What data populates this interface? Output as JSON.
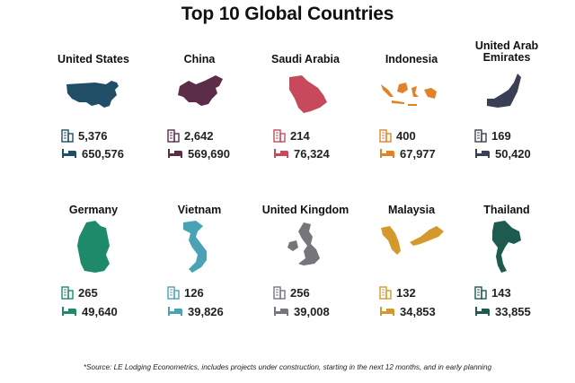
{
  "title": "Top 10 Global Countries",
  "countries": [
    {
      "name": "United States",
      "hotels": "5,376",
      "rooms": "650,576",
      "color": "#1f4e66",
      "icon": "usa-map"
    },
    {
      "name": "China",
      "hotels": "2,642",
      "rooms": "569,690",
      "color": "#5b2d48",
      "icon": "china-map"
    },
    {
      "name": "Saudi Arabia",
      "hotels": "214",
      "rooms": "76,324",
      "color": "#c8495c",
      "icon": "saudi-arabia-map"
    },
    {
      "name": "Indonesia",
      "hotels": "400",
      "rooms": "67,977",
      "color": "#e0822a",
      "icon": "indonesia-map"
    },
    {
      "name": "United Arab Emirates",
      "hotels": "169",
      "rooms": "50,420",
      "color": "#3a3f55",
      "icon": "uae-map"
    },
    {
      "name": "Germany",
      "hotels": "265",
      "rooms": "49,640",
      "color": "#1f8a6a",
      "icon": "germany-map"
    },
    {
      "name": "Vietnam",
      "hotels": "126",
      "rooms": "39,826",
      "color": "#4aa3b5",
      "icon": "vietnam-map"
    },
    {
      "name": "United Kingdom",
      "hotels": "256",
      "rooms": "39,008",
      "color": "#77757c",
      "icon": "uk-map"
    },
    {
      "name": "Malaysia",
      "hotels": "132",
      "rooms": "34,853",
      "color": "#d39a2b",
      "icon": "malaysia-map"
    },
    {
      "name": "Thailand",
      "hotels": "143",
      "rooms": "33,855",
      "color": "#1d5a4f",
      "icon": "thailand-map"
    }
  ],
  "footnote": "*Source: LE Lodging Econometrics, includes projects under construction, starting in the next 12 months, and in early planning"
}
